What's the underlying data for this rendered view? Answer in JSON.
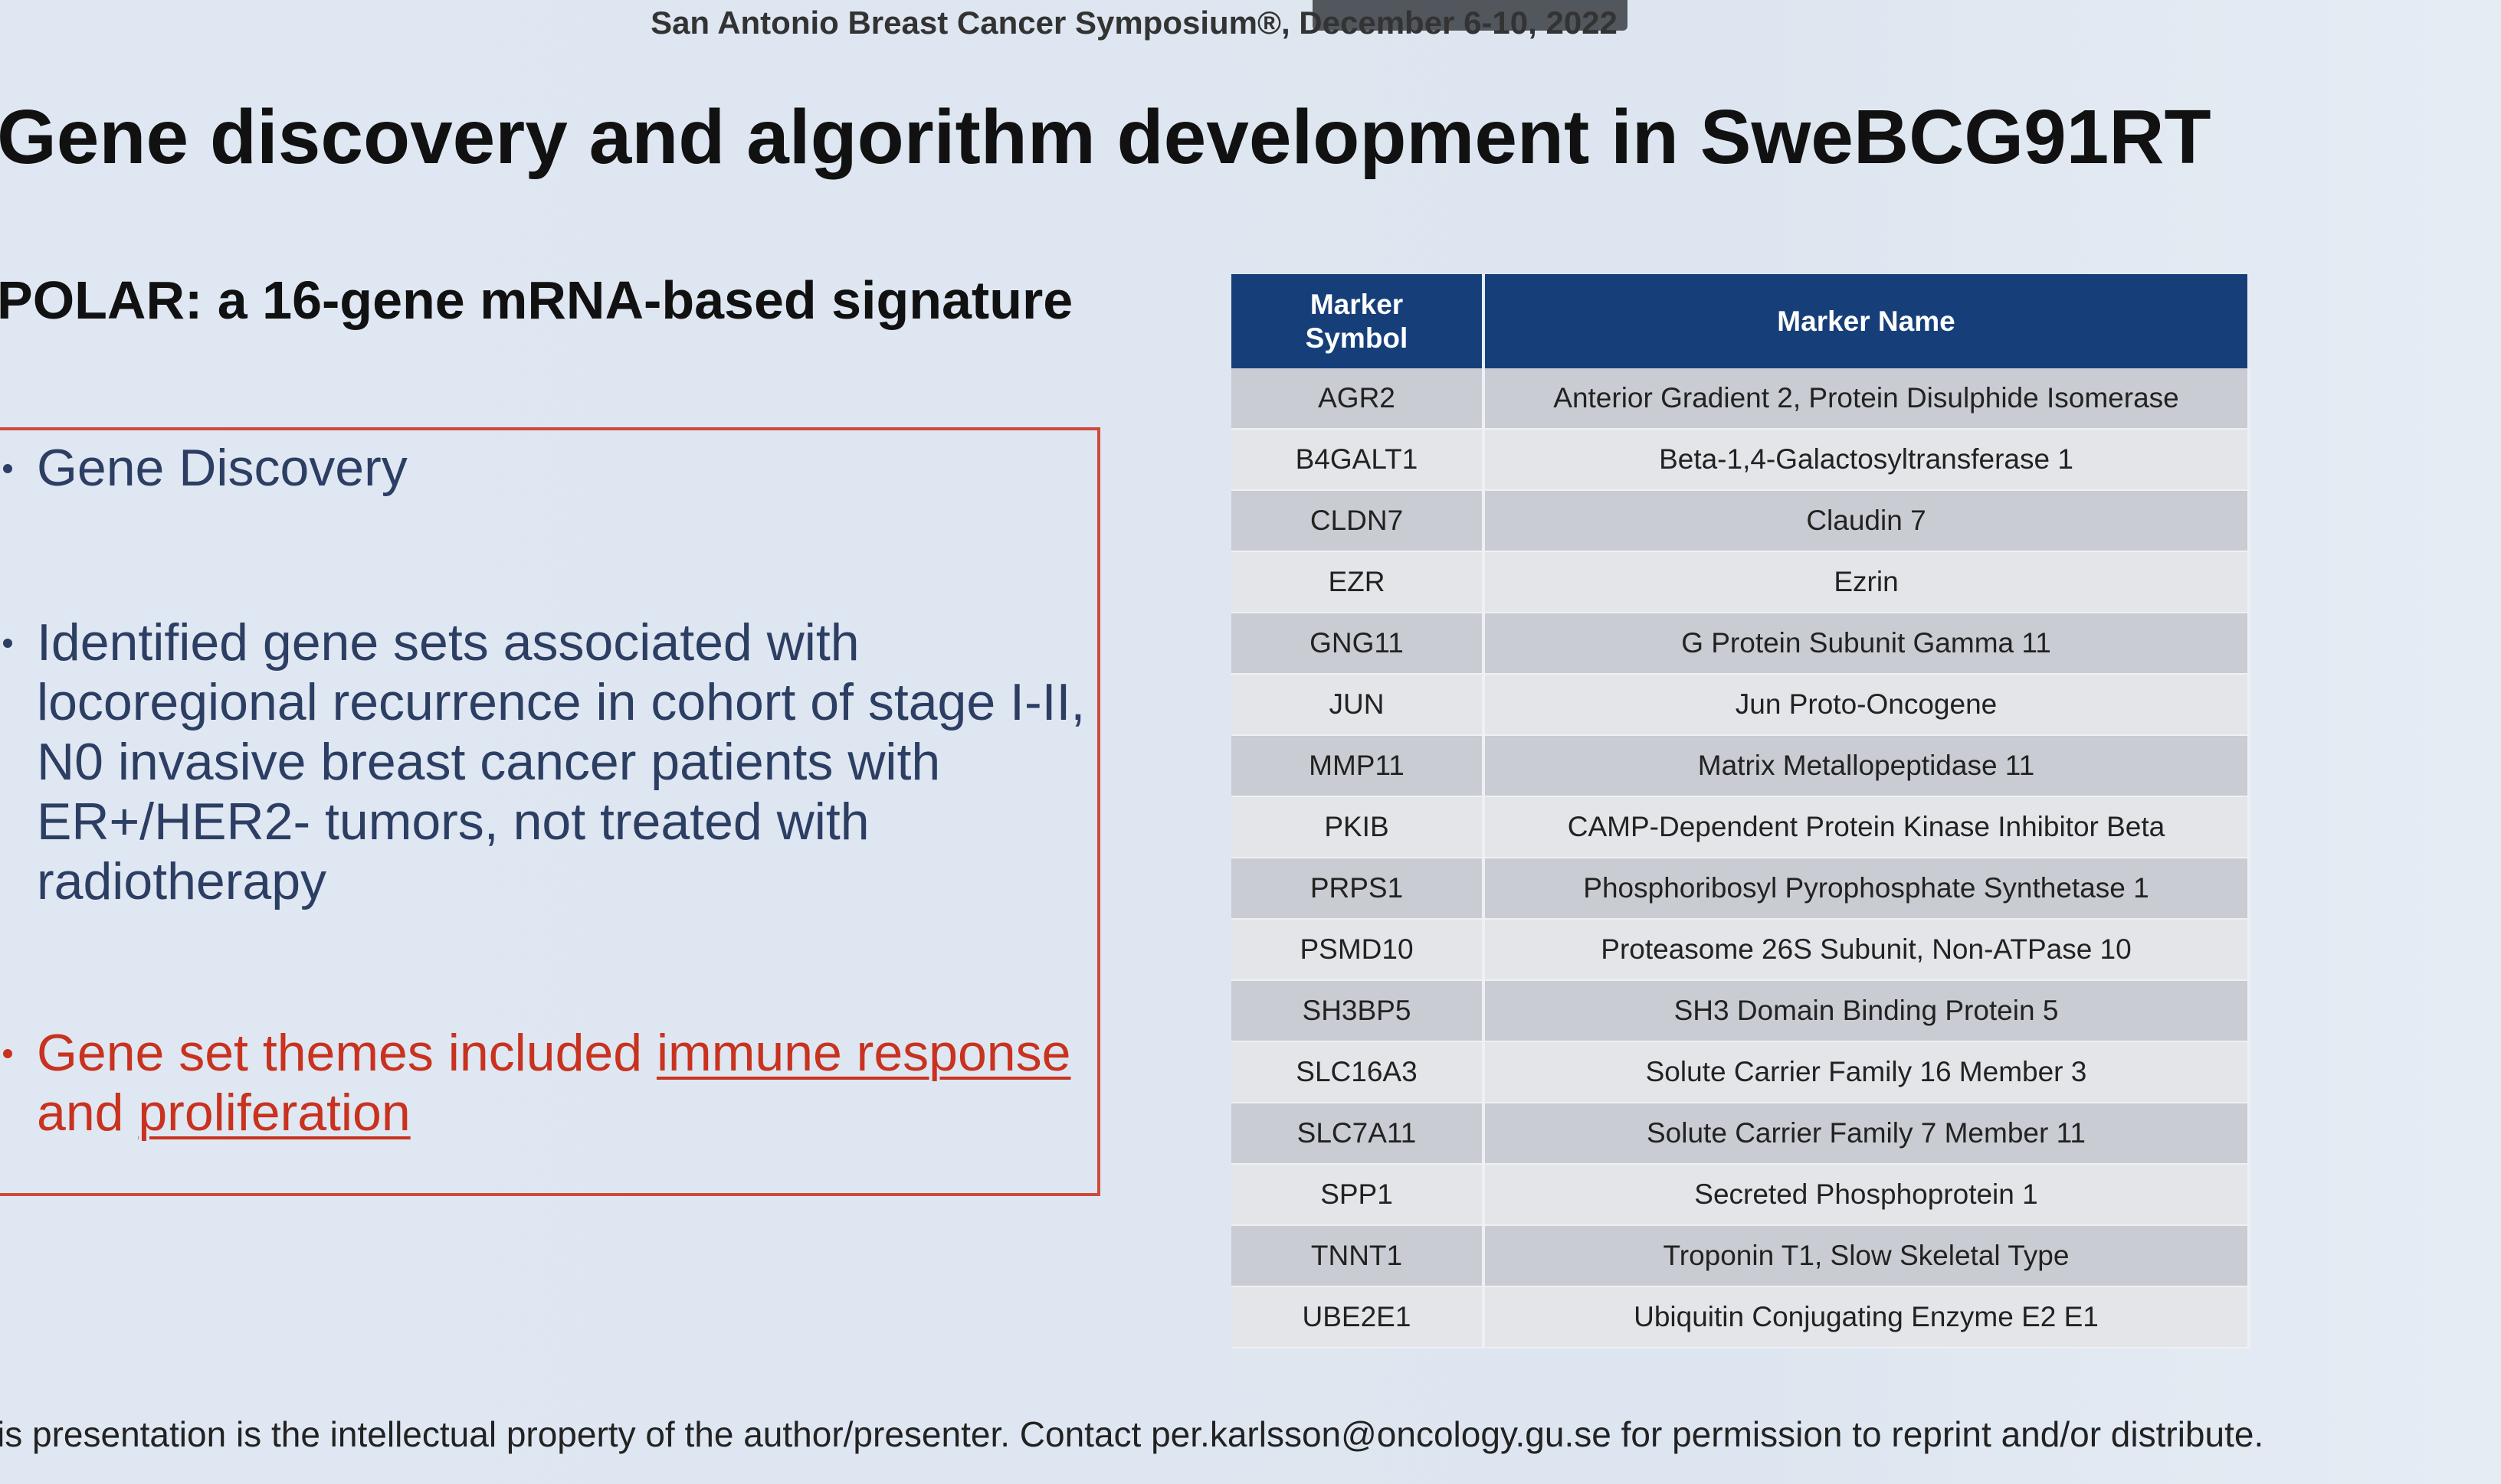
{
  "header": {
    "event": "San Antonio Breast Cancer Symposium®, December 6-10, 2022"
  },
  "title": "Gene discovery and algorithm development in SweBCG91RT",
  "subtitle": "POLAR: a 16-gene mRNA-based signature",
  "bullets": [
    {
      "runs": [
        {
          "text": "Gene Discovery",
          "underline": false
        }
      ],
      "color": "#2c3e63"
    },
    {
      "runs": [
        {
          "text": "Identified gene sets associated with locoregional recurrence in cohort of stage I-II, N0 invasive breast cancer patients with ER+/HER2- tumors, not treated with radiotherapy",
          "underline": false
        }
      ],
      "color": "#2c3e63"
    },
    {
      "runs": [
        {
          "text": "Gene set themes included ",
          "underline": false
        },
        {
          "text": "immune response ",
          "underline": true
        },
        {
          "text": "and ",
          "underline": false
        },
        {
          "text": "proliferation",
          "underline": true
        }
      ],
      "color": "#c8321e"
    }
  ],
  "table": {
    "header": [
      "Marker Symbol",
      "Marker Name"
    ],
    "rows": [
      [
        "AGR2",
        "Anterior Gradient 2, Protein Disulphide Isomerase"
      ],
      [
        "B4GALT1",
        "Beta-1,4-Galactosyltransferase 1"
      ],
      [
        "CLDN7",
        "Claudin 7"
      ],
      [
        "EZR",
        "Ezrin"
      ],
      [
        "GNG11",
        "G Protein Subunit Gamma 11"
      ],
      [
        "JUN",
        "Jun Proto-Oncogene"
      ],
      [
        "MMP11",
        "Matrix Metallopeptidase 11"
      ],
      [
        "PKIB",
        "CAMP-Dependent Protein Kinase Inhibitor Beta"
      ],
      [
        "PRPS1",
        "Phosphoribosyl Pyrophosphate Synthetase 1"
      ],
      [
        "PSMD10",
        "Proteasome 26S Subunit, Non-ATPase 10"
      ],
      [
        "SH3BP5",
        "SH3 Domain Binding Protein 5"
      ],
      [
        "SLC16A3",
        "Solute Carrier Family 16 Member 3"
      ],
      [
        "SLC7A11",
        "Solute Carrier Family 7 Member 11"
      ],
      [
        "SPP1",
        "Secreted Phosphoprotein 1"
      ],
      [
        "TNNT1",
        "Troponin T1, Slow Skeletal Type"
      ],
      [
        "UBE2E1",
        "Ubiquitin Conjugating Enzyme E2 E1"
      ]
    ]
  },
  "footer": "is presentation is the intellectual property of the author/presenter.  Contact per.karlsson@oncology.gu.se for permission to reprint and/or distribute."
}
